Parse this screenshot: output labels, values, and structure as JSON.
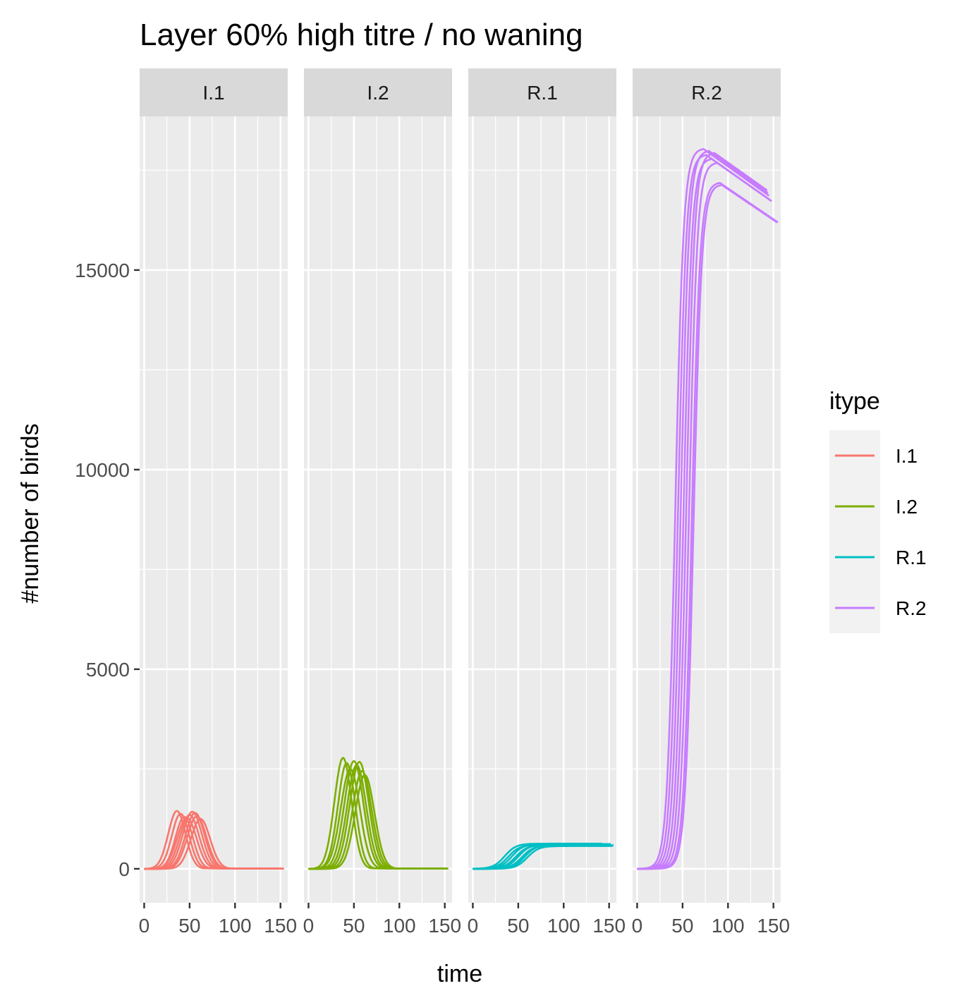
{
  "chart_data": {
    "type": "line",
    "title": "Layer 60% high titre / no waning",
    "xlabel": "time",
    "ylabel": "#number of birds",
    "xlim": [
      -5,
      158
    ],
    "ylim": [
      -850,
      18850
    ],
    "x_ticks": [
      0,
      50,
      100,
      150
    ],
    "x_tick_labels": [
      "0",
      "50",
      "100",
      "150"
    ],
    "y_ticks": [
      0,
      5000,
      10000,
      15000
    ],
    "y_tick_labels": [
      "0",
      "5000",
      "10000",
      "15000"
    ],
    "grid": true,
    "legend": {
      "title": "itype",
      "position": "right",
      "entries": [
        "I.1",
        "I.2",
        "R.1",
        "R.2"
      ]
    },
    "facets": [
      "I.1",
      "I.2",
      "R.1",
      "R.2"
    ],
    "colors": {
      "I.1": "#F8766D",
      "I.2": "#7CAE00",
      "R.1": "#00BFC4",
      "R.2": "#C77CFF"
    },
    "series": [
      {
        "name": "I.1",
        "shape": "peak",
        "runs": [
          {
            "peak_time": 36,
            "peak": 1450,
            "end_time": 150,
            "tail": 20
          },
          {
            "peak_time": 40,
            "peak": 1380,
            "end_time": 152,
            "tail": 20
          },
          {
            "peak_time": 44,
            "peak": 1300,
            "end_time": 153,
            "tail": 20
          },
          {
            "peak_time": 47,
            "peak": 1280,
            "end_time": 150,
            "tail": 20
          },
          {
            "peak_time": 50,
            "peak": 1350,
            "end_time": 154,
            "tail": 20
          },
          {
            "peak_time": 53,
            "peak": 1430,
            "end_time": 152,
            "tail": 20
          },
          {
            "peak_time": 56,
            "peak": 1400,
            "end_time": 150,
            "tail": 20
          },
          {
            "peak_time": 58,
            "peak": 1320,
            "end_time": 153,
            "tail": 20
          },
          {
            "peak_time": 62,
            "peak": 1250,
            "end_time": 151,
            "tail": 20
          }
        ]
      },
      {
        "name": "I.2",
        "shape": "peak",
        "runs": [
          {
            "peak_time": 38,
            "peak": 2780,
            "end_time": 150,
            "tail": 20
          },
          {
            "peak_time": 42,
            "peak": 2650,
            "end_time": 152,
            "tail": 20
          },
          {
            "peak_time": 46,
            "peak": 2500,
            "end_time": 153,
            "tail": 20
          },
          {
            "peak_time": 50,
            "peak": 2700,
            "end_time": 150,
            "tail": 20
          },
          {
            "peak_time": 53,
            "peak": 2600,
            "end_time": 154,
            "tail": 20
          },
          {
            "peak_time": 56,
            "peak": 2680,
            "end_time": 152,
            "tail": 20
          },
          {
            "peak_time": 59,
            "peak": 2450,
            "end_time": 150,
            "tail": 20
          },
          {
            "peak_time": 62,
            "peak": 2350,
            "end_time": 153,
            "tail": 20
          }
        ]
      },
      {
        "name": "R.1",
        "shape": "rise",
        "runs": [
          {
            "mid_time": 35,
            "final": 630,
            "end_time": 142
          },
          {
            "mid_time": 39,
            "final": 600,
            "end_time": 150
          },
          {
            "mid_time": 43,
            "final": 620,
            "end_time": 152
          },
          {
            "mid_time": 47,
            "final": 590,
            "end_time": 155
          },
          {
            "mid_time": 50,
            "final": 610,
            "end_time": 148
          },
          {
            "mid_time": 54,
            "final": 580,
            "end_time": 153
          },
          {
            "mid_time": 57,
            "final": 600,
            "end_time": 150
          },
          {
            "mid_time": 60,
            "final": 570,
            "end_time": 154
          }
        ]
      },
      {
        "name": "R.2",
        "shape": "rise",
        "runs": [
          {
            "mid_time": 42,
            "final": 18050,
            "end_time": 145
          },
          {
            "mid_time": 45,
            "final": 17900,
            "end_time": 148
          },
          {
            "mid_time": 48,
            "final": 18000,
            "end_time": 144
          },
          {
            "mid_time": 51,
            "final": 17800,
            "end_time": 146
          },
          {
            "mid_time": 54,
            "final": 17950,
            "end_time": 143
          },
          {
            "mid_time": 57,
            "final": 17700,
            "end_time": 147
          },
          {
            "mid_time": 60,
            "final": 17200,
            "end_time": 155
          },
          {
            "mid_time": 62,
            "final": 17150,
            "end_time": 154
          }
        ]
      }
    ]
  }
}
